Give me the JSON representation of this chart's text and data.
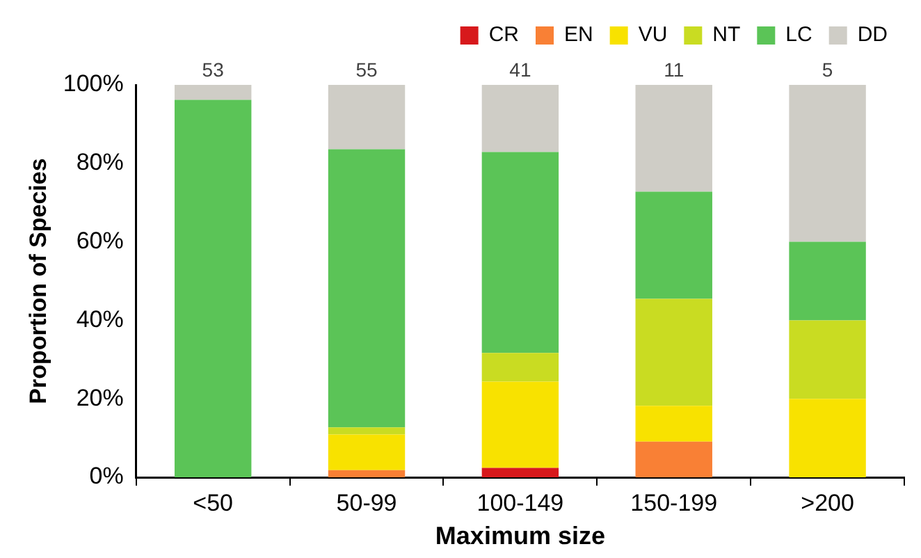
{
  "chart_data": {
    "type": "bar",
    "stacked": true,
    "xlabel": "Maximum size",
    "ylabel": "Proportion of Species",
    "categories": [
      "<50",
      "50-99",
      "100-149",
      "150-199",
      ">200"
    ],
    "series": [
      {
        "name": "CR",
        "color": "#d7191c",
        "values": [
          0,
          0,
          2.4,
          0,
          0
        ]
      },
      {
        "name": "EN",
        "color": "#f98035",
        "values": [
          0,
          1.8,
          0,
          9.1,
          0
        ]
      },
      {
        "name": "VU",
        "color": "#f8e200",
        "values": [
          0,
          9.1,
          22.0,
          9.1,
          20
        ]
      },
      {
        "name": "NT",
        "color": "#c9dc22",
        "values": [
          0,
          1.8,
          7.3,
          27.3,
          20
        ]
      },
      {
        "name": "LC",
        "color": "#5bc457",
        "values": [
          96.2,
          70.9,
          51.2,
          27.3,
          20
        ]
      },
      {
        "name": "DD",
        "color": "#cfcdc6",
        "values": [
          3.8,
          16.4,
          17.1,
          27.3,
          40
        ]
      }
    ],
    "annotations": [
      {
        "text": "53",
        "x": "<50",
        "y": 100
      },
      {
        "text": "55",
        "x": "50-99",
        "y": 100
      },
      {
        "text": "41",
        "x": "100-149",
        "y": 100
      },
      {
        "text": "11",
        "x": "150-199",
        "y": 100
      },
      {
        "text": "5",
        "x": ">200",
        "y": 100
      }
    ],
    "ylim": [
      0,
      100
    ],
    "yticks": [
      {
        "value": 0,
        "label": "0%"
      },
      {
        "value": 20,
        "label": "20%"
      },
      {
        "value": 40,
        "label": "40%"
      },
      {
        "value": 60,
        "label": "60%"
      },
      {
        "value": 80,
        "label": "80%"
      },
      {
        "value": 100,
        "label": "100%"
      }
    ],
    "grid": false,
    "legend": "top right"
  }
}
